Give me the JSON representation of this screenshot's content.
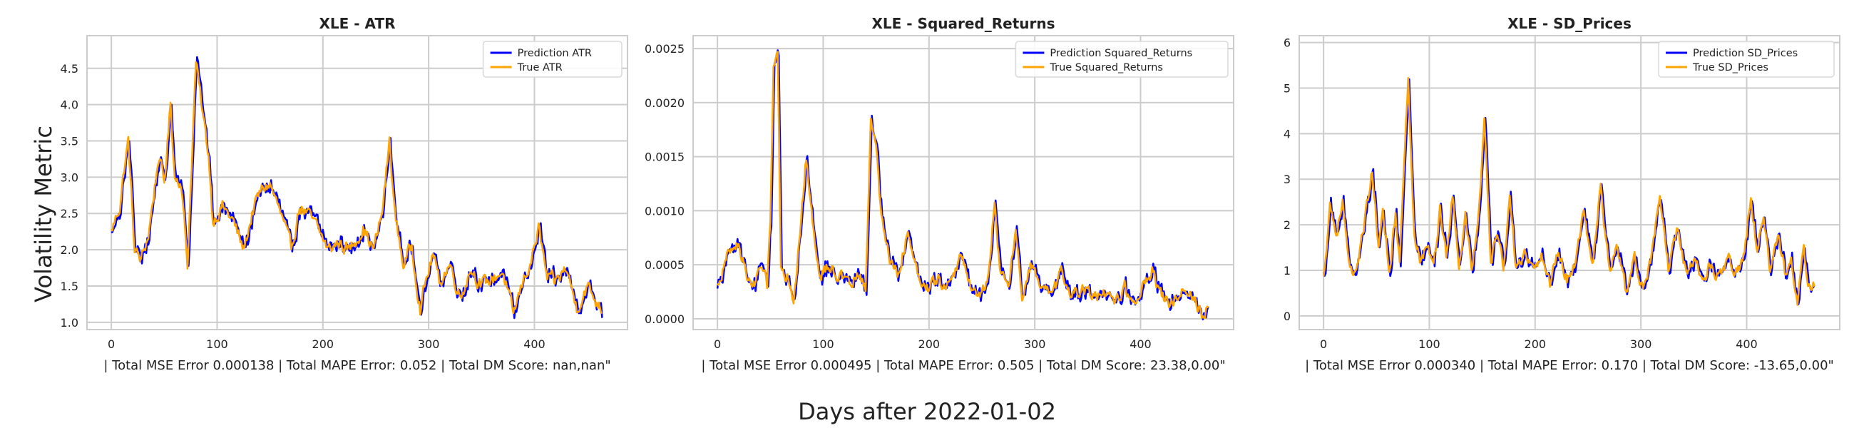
{
  "figure": {
    "ylabel": "Volatility Metric",
    "xlabel": "Days after 2022-01-02"
  },
  "colors": {
    "prediction": "#0000ff",
    "true": "#ffa500",
    "grid": "#cccccc",
    "frame": "#cccccc"
  },
  "chart_data": [
    {
      "type": "line",
      "title": "XLE - ATR",
      "xlabel": "| Total MSE Error 0.000138 | Total MAPE Error: 0.052 | Total DM Score: nan,nan\"",
      "ylabel": "",
      "xlim": [
        -23,
        488
      ],
      "ylim": [
        0.9,
        4.95
      ],
      "xticks": [
        0,
        100,
        200,
        300,
        400
      ],
      "yticks": [
        1.0,
        1.5,
        2.0,
        2.5,
        3.0,
        3.5,
        4.0,
        4.5
      ],
      "yticklabels": [
        "1.0",
        "1.5",
        "2.0",
        "2.5",
        "3.0",
        "3.5",
        "4.0",
        "4.5"
      ],
      "grid": true,
      "legend_position": "upper right",
      "n_points": 465,
      "series": [
        {
          "name": "Prediction ATR",
          "role": "prediction",
          "color": "#0000ff"
        },
        {
          "name": "True ATR",
          "role": "true",
          "color": "#ffa500"
        }
      ],
      "keypoints": [
        [
          0,
          2.25
        ],
        [
          8,
          2.6
        ],
        [
          12,
          3.1
        ],
        [
          16,
          3.5
        ],
        [
          22,
          2.0
        ],
        [
          28,
          1.85
        ],
        [
          35,
          2.2
        ],
        [
          45,
          3.3
        ],
        [
          50,
          2.9
        ],
        [
          56,
          4.0
        ],
        [
          60,
          3.0
        ],
        [
          66,
          2.95
        ],
        [
          72,
          1.8
        ],
        [
          80,
          4.6
        ],
        [
          86,
          3.9
        ],
        [
          92,
          3.3
        ],
        [
          96,
          2.4
        ],
        [
          105,
          2.6
        ],
        [
          115,
          2.4
        ],
        [
          125,
          2.0
        ],
        [
          135,
          2.6
        ],
        [
          143,
          2.85
        ],
        [
          150,
          2.9
        ],
        [
          160,
          2.5
        ],
        [
          170,
          2.0
        ],
        [
          178,
          2.6
        ],
        [
          185,
          2.5
        ],
        [
          195,
          2.3
        ],
        [
          205,
          2.0
        ],
        [
          215,
          2.1
        ],
        [
          225,
          2.0
        ],
        [
          238,
          2.3
        ],
        [
          248,
          2.0
        ],
        [
          256,
          2.5
        ],
        [
          263,
          3.5
        ],
        [
          268,
          2.5
        ],
        [
          276,
          1.8
        ],
        [
          284,
          2.05
        ],
        [
          292,
          1.2
        ],
        [
          298,
          1.6
        ],
        [
          304,
          1.95
        ],
        [
          310,
          1.55
        ],
        [
          320,
          1.8
        ],
        [
          330,
          1.35
        ],
        [
          340,
          1.75
        ],
        [
          350,
          1.5
        ],
        [
          360,
          1.6
        ],
        [
          370,
          1.7
        ],
        [
          380,
          1.1
        ],
        [
          390,
          1.6
        ],
        [
          398,
          1.9
        ],
        [
          404,
          2.3
        ],
        [
          412,
          1.6
        ],
        [
          420,
          1.55
        ],
        [
          430,
          1.75
        ],
        [
          440,
          1.2
        ],
        [
          450,
          1.5
        ],
        [
          458,
          1.3
        ],
        [
          465,
          1.15
        ]
      ]
    },
    {
      "type": "line",
      "title": "XLE - Squared_Returns",
      "xlabel": "| Total MSE Error 0.000495 | Total MAPE Error: 0.505 | Total DM Score: 23.38,0.00\"",
      "ylabel": "",
      "xlim": [
        -23,
        488
      ],
      "ylim": [
        -0.0001,
        0.00262
      ],
      "xticks": [
        0,
        100,
        200,
        300,
        400
      ],
      "yticks": [
        0.0,
        0.0005,
        0.001,
        0.0015,
        0.002,
        0.0025
      ],
      "yticklabels": [
        "0.0000",
        "0.0005",
        "0.0010",
        "0.0015",
        "0.0020",
        "0.0025"
      ],
      "grid": true,
      "legend_position": "upper right",
      "n_points": 465,
      "series": [
        {
          "name": "Prediction Squared_Returns",
          "role": "prediction",
          "color": "#0000ff"
        },
        {
          "name": "True Squared_Returns",
          "role": "true",
          "color": "#ffa500"
        }
      ],
      "keypoints": [
        [
          0,
          0.0003
        ],
        [
          10,
          0.0006
        ],
        [
          20,
          0.0007
        ],
        [
          28,
          0.0004
        ],
        [
          35,
          0.0003
        ],
        [
          42,
          0.0005
        ],
        [
          47,
          0.0003
        ],
        [
          50,
          0.0009
        ],
        [
          53,
          0.0024
        ],
        [
          57,
          0.00245
        ],
        [
          60,
          0.0005
        ],
        [
          66,
          0.0004
        ],
        [
          72,
          0.0002
        ],
        [
          78,
          0.0008
        ],
        [
          84,
          0.0015
        ],
        [
          90,
          0.0009
        ],
        [
          96,
          0.0004
        ],
        [
          105,
          0.0005
        ],
        [
          115,
          0.0004
        ],
        [
          125,
          0.0003
        ],
        [
          133,
          0.0004
        ],
        [
          140,
          0.0003
        ],
        [
          145,
          0.0018
        ],
        [
          150,
          0.00165
        ],
        [
          155,
          0.0009
        ],
        [
          162,
          0.0006
        ],
        [
          170,
          0.0004
        ],
        [
          180,
          0.0008
        ],
        [
          190,
          0.0004
        ],
        [
          200,
          0.0003
        ],
        [
          210,
          0.00035
        ],
        [
          220,
          0.0003
        ],
        [
          230,
          0.0006
        ],
        [
          240,
          0.0003
        ],
        [
          250,
          0.0002
        ],
        [
          256,
          0.0004
        ],
        [
          262,
          0.00105
        ],
        [
          268,
          0.0004
        ],
        [
          275,
          0.0003
        ],
        [
          282,
          0.0008
        ],
        [
          288,
          0.0002
        ],
        [
          296,
          0.0005
        ],
        [
          305,
          0.0003
        ],
        [
          315,
          0.0002
        ],
        [
          325,
          0.0004
        ],
        [
          335,
          0.0002
        ],
        [
          345,
          0.0003
        ],
        [
          355,
          0.0002
        ],
        [
          365,
          0.0002
        ],
        [
          375,
          0.00015
        ],
        [
          385,
          0.0003
        ],
        [
          395,
          0.0001
        ],
        [
          405,
          0.0004
        ],
        [
          412,
          0.00045
        ],
        [
          420,
          0.0002
        ],
        [
          430,
          0.00015
        ],
        [
          440,
          0.0003
        ],
        [
          450,
          0.0002
        ],
        [
          458,
          5e-05
        ],
        [
          465,
          0.00015
        ]
      ]
    },
    {
      "type": "line",
      "title": "XLE - SD_Prices",
      "xlabel": "| Total MSE Error 0.000340 | Total MAPE Error: 0.170 | Total DM Score: -13.65,0.00\"",
      "ylabel": "",
      "xlim": [
        -23,
        488
      ],
      "ylim": [
        -0.3,
        6.15
      ],
      "xticks": [
        0,
        100,
        200,
        300,
        400
      ],
      "yticks": [
        0,
        1,
        2,
        3,
        4,
        5,
        6
      ],
      "yticklabels": [
        "0",
        "1",
        "2",
        "3",
        "4",
        "5",
        "6"
      ],
      "grid": true,
      "legend_position": "upper right",
      "n_points": 465,
      "series": [
        {
          "name": "Prediction SD_Prices",
          "role": "prediction",
          "color": "#0000ff"
        },
        {
          "name": "True SD_Prices",
          "role": "true",
          "color": "#ffa500"
        }
      ],
      "keypoints": [
        [
          0,
          0.8
        ],
        [
          6,
          2.5
        ],
        [
          12,
          1.8
        ],
        [
          18,
          2.5
        ],
        [
          24,
          1.0
        ],
        [
          30,
          0.8
        ],
        [
          36,
          1.8
        ],
        [
          42,
          2.5
        ],
        [
          46,
          3.2
        ],
        [
          52,
          1.4
        ],
        [
          56,
          2.5
        ],
        [
          62,
          1.0
        ],
        [
          68,
          2.2
        ],
        [
          72,
          1.2
        ],
        [
          76,
          3.2
        ],
        [
          80,
          5.2
        ],
        [
          86,
          1.8
        ],
        [
          92,
          1.2
        ],
        [
          98,
          1.6
        ],
        [
          104,
          1.0
        ],
        [
          110,
          2.4
        ],
        [
          116,
          1.3
        ],
        [
          122,
          2.6
        ],
        [
          128,
          1.0
        ],
        [
          134,
          2.2
        ],
        [
          140,
          1.1
        ],
        [
          146,
          2.0
        ],
        [
          152,
          4.2
        ],
        [
          158,
          1.2
        ],
        [
          164,
          1.8
        ],
        [
          170,
          1.0
        ],
        [
          176,
          2.8
        ],
        [
          182,
          1.0
        ],
        [
          190,
          1.3
        ],
        [
          198,
          0.9
        ],
        [
          206,
          1.4
        ],
        [
          214,
          0.7
        ],
        [
          222,
          1.5
        ],
        [
          230,
          0.8
        ],
        [
          238,
          1.2
        ],
        [
          246,
          2.4
        ],
        [
          254,
          1.0
        ],
        [
          262,
          2.8
        ],
        [
          270,
          1.0
        ],
        [
          278,
          1.5
        ],
        [
          286,
          0.5
        ],
        [
          294,
          1.2
        ],
        [
          302,
          0.7
        ],
        [
          310,
          1.3
        ],
        [
          318,
          2.5
        ],
        [
          326,
          1.0
        ],
        [
          334,
          2.0
        ],
        [
          342,
          1.0
        ],
        [
          350,
          1.3
        ],
        [
          358,
          0.8
        ],
        [
          366,
          1.1
        ],
        [
          374,
          0.9
        ],
        [
          382,
          1.3
        ],
        [
          390,
          1.0
        ],
        [
          398,
          1.3
        ],
        [
          404,
          2.7
        ],
        [
          410,
          1.4
        ],
        [
          416,
          2.2
        ],
        [
          422,
          1.0
        ],
        [
          430,
          1.8
        ],
        [
          436,
          1.0
        ],
        [
          442,
          1.2
        ],
        [
          448,
          0.2
        ],
        [
          454,
          1.4
        ],
        [
          460,
          0.5
        ],
        [
          465,
          0.8
        ]
      ]
    }
  ]
}
